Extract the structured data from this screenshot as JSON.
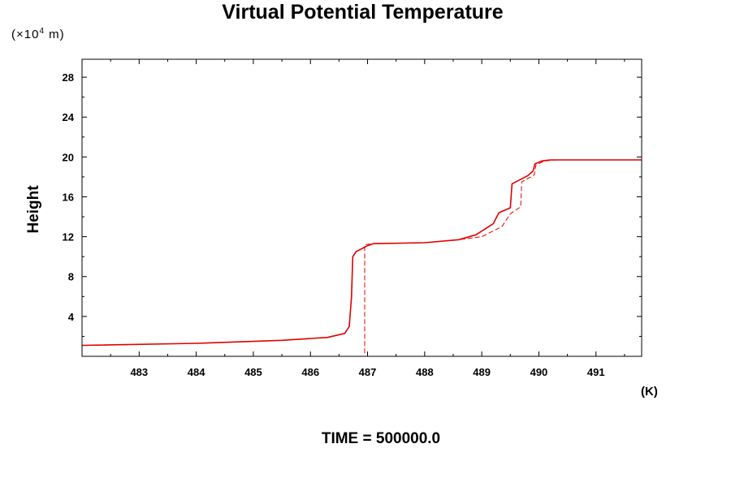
{
  "chart_data": {
    "type": "line",
    "title": "Virtual Potential Temperature",
    "ylabel": "Height",
    "y_unit_prefix": "(×10",
    "y_unit_exp": "4",
    "y_unit_suffix": " m)",
    "x_unit": "(K)",
    "footer": "TIME = 500000.0",
    "xlim": [
      482.0,
      491.8
    ],
    "ylim": [
      0.0,
      29.8
    ],
    "x_ticks": [
      483,
      484,
      485,
      486,
      487,
      488,
      489,
      490,
      491
    ],
    "x_tick_labels": [
      "483",
      "484",
      "485",
      "486",
      "487",
      "488",
      "489",
      "490",
      "491"
    ],
    "y_ticks": [
      4,
      8,
      12,
      16,
      20,
      24,
      28
    ],
    "y_tick_labels": [
      "4",
      "8",
      "12",
      "16",
      "20",
      "24",
      "28"
    ],
    "series": [
      {
        "style": "solid",
        "color": "#e00000",
        "points": [
          [
            482.0,
            1.1
          ],
          [
            484.0,
            1.3
          ],
          [
            485.5,
            1.6
          ],
          [
            486.3,
            1.9
          ],
          [
            486.6,
            2.3
          ],
          [
            486.68,
            3.0
          ],
          [
            486.72,
            6.0
          ],
          [
            486.74,
            10.0
          ],
          [
            486.8,
            10.5
          ],
          [
            487.0,
            11.1
          ],
          [
            487.1,
            11.3
          ],
          [
            488.0,
            11.4
          ],
          [
            488.6,
            11.7
          ],
          [
            488.9,
            12.2
          ],
          [
            489.2,
            13.3
          ],
          [
            489.3,
            14.4
          ],
          [
            489.5,
            14.9
          ],
          [
            489.53,
            17.3
          ],
          [
            489.8,
            18.1
          ],
          [
            489.9,
            18.6
          ],
          [
            489.93,
            19.3
          ],
          [
            490.05,
            19.6
          ],
          [
            490.2,
            19.7
          ],
          [
            491.8,
            19.7
          ]
        ]
      },
      {
        "style": "dashed",
        "color": "#e00000",
        "points": [
          [
            486.95,
            0.3
          ],
          [
            486.95,
            11.2
          ],
          [
            487.1,
            11.3
          ],
          [
            488.0,
            11.4
          ],
          [
            488.6,
            11.7
          ],
          [
            489.0,
            12.0
          ],
          [
            489.35,
            13.0
          ],
          [
            489.5,
            14.3
          ],
          [
            489.68,
            15.0
          ],
          [
            489.7,
            17.5
          ],
          [
            489.92,
            18.2
          ],
          [
            489.95,
            19.2
          ],
          [
            490.1,
            19.6
          ],
          [
            490.3,
            19.7
          ],
          [
            491.8,
            19.7
          ]
        ]
      }
    ]
  }
}
